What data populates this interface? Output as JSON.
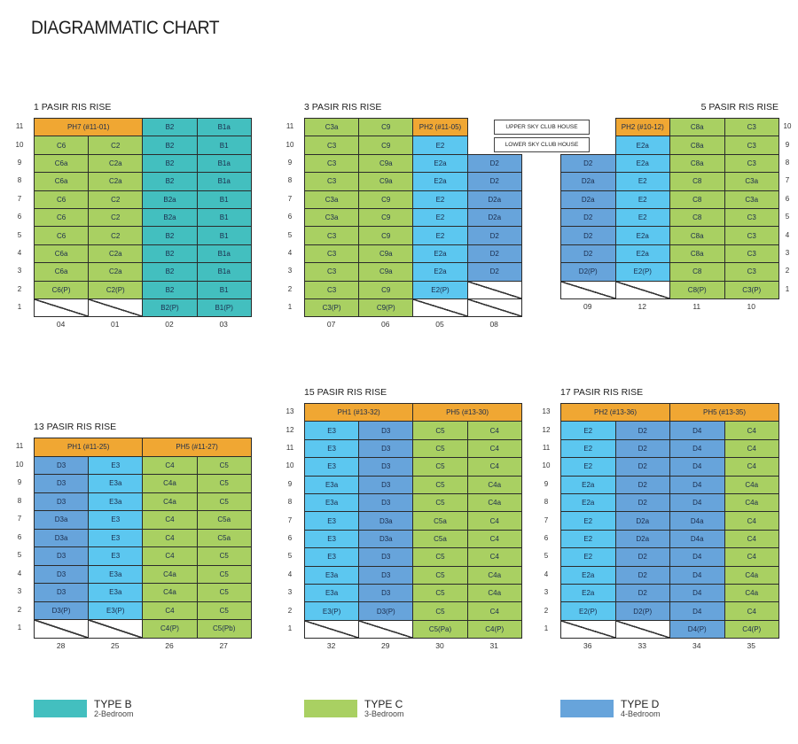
{
  "title": "DIAGRAMMATIC CHART",
  "colors": {
    "type_b": "#43bfbf",
    "type_c": "#a9d062",
    "type_d": "#67a4db",
    "type_e": "#5cc7f0",
    "penthouse": "#f0a733"
  },
  "sky_club": {
    "upper": "UPPER SKY CLUB HOUSE",
    "lower": "LOWER SKY CLUB HOUSE"
  },
  "blocks": [
    {
      "name": "1 PASIR RIS RISE",
      "stacks": [
        "04",
        "01",
        "02",
        "03"
      ],
      "rows": [
        {
          "floor": "11",
          "cells": [
            {
              "label": "PH7 (#11-01)",
              "span": 2
            },
            "B2",
            "B1a"
          ]
        },
        {
          "floor": "10",
          "cells": [
            "C6",
            "C2",
            "B2",
            "B1"
          ]
        },
        {
          "floor": "9",
          "cells": [
            "C6a",
            "C2a",
            "B2",
            "B1a"
          ]
        },
        {
          "floor": "8",
          "cells": [
            "C6a",
            "C2a",
            "B2",
            "B1a"
          ]
        },
        {
          "floor": "7",
          "cells": [
            "C6",
            "C2",
            "B2a",
            "B1"
          ]
        },
        {
          "floor": "6",
          "cells": [
            "C6",
            "C2",
            "B2a",
            "B1"
          ]
        },
        {
          "floor": "5",
          "cells": [
            "C6",
            "C2",
            "B2",
            "B1"
          ]
        },
        {
          "floor": "4",
          "cells": [
            "C6a",
            "C2a",
            "B2",
            "B1a"
          ]
        },
        {
          "floor": "3",
          "cells": [
            "C6a",
            "C2a",
            "B2",
            "B1a"
          ]
        },
        {
          "floor": "2",
          "cells": [
            "C6(P)",
            "C2(P)",
            "B2",
            "B1"
          ]
        },
        {
          "floor": "1",
          "cells": [
            "",
            "",
            "B2(P)",
            "B1(P)"
          ]
        }
      ]
    },
    {
      "name": "3 PASIR RIS RISE",
      "stacks": [
        "07",
        "06",
        "05",
        "08"
      ],
      "rows": [
        {
          "floor": "11",
          "cells": [
            "C3a",
            "C9",
            {
              "label": "PH2 (#11-05)",
              "span": 1
            },
            null
          ]
        },
        {
          "floor": "10",
          "cells": [
            "C3",
            "C9",
            "E2",
            null
          ]
        },
        {
          "floor": "9",
          "cells": [
            "C3",
            "C9a",
            "E2a",
            "D2"
          ]
        },
        {
          "floor": "8",
          "cells": [
            "C3",
            "C9a",
            "E2a",
            "D2"
          ]
        },
        {
          "floor": "7",
          "cells": [
            "C3a",
            "C9",
            "E2",
            "D2a"
          ]
        },
        {
          "floor": "6",
          "cells": [
            "C3a",
            "C9",
            "E2",
            "D2a"
          ]
        },
        {
          "floor": "5",
          "cells": [
            "C3",
            "C9",
            "E2",
            "D2"
          ]
        },
        {
          "floor": "4",
          "cells": [
            "C3",
            "C9a",
            "E2a",
            "D2"
          ]
        },
        {
          "floor": "3",
          "cells": [
            "C3",
            "C9a",
            "E2a",
            "D2"
          ]
        },
        {
          "floor": "2",
          "cells": [
            "C3",
            "C9",
            "E2(P)",
            ""
          ]
        },
        {
          "floor": "1",
          "cells": [
            "C3(P)",
            "C9(P)",
            "",
            ""
          ]
        }
      ]
    },
    {
      "name": "5 PASIR RIS RISE",
      "stacks": [
        "09",
        "12",
        "11",
        "10"
      ],
      "rows": [
        {
          "floor": "10",
          "cells": [
            null,
            {
              "label": "PH2 (#10-12)",
              "span": 1
            },
            "C8a",
            "C3"
          ]
        },
        {
          "floor": "9",
          "cells": [
            null,
            "E2a",
            "C8a",
            "C3"
          ]
        },
        {
          "floor": "8",
          "cells": [
            "D2",
            "E2a",
            "C8a",
            "C3"
          ]
        },
        {
          "floor": "7",
          "cells": [
            "D2a",
            "E2",
            "C8",
            "C3a"
          ]
        },
        {
          "floor": "6",
          "cells": [
            "D2a",
            "E2",
            "C8",
            "C3a"
          ]
        },
        {
          "floor": "5",
          "cells": [
            "D2",
            "E2",
            "C8",
            "C3"
          ]
        },
        {
          "floor": "4",
          "cells": [
            "D2",
            "E2a",
            "C8a",
            "C3"
          ]
        },
        {
          "floor": "3",
          "cells": [
            "D2",
            "E2a",
            "C8a",
            "C3"
          ]
        },
        {
          "floor": "2",
          "cells": [
            "D2(P)",
            "E2(P)",
            "C8",
            "C3"
          ]
        },
        {
          "floor": "1",
          "cells": [
            "",
            "",
            "C8(P)",
            "C3(P)"
          ]
        }
      ]
    },
    {
      "name": "13 PASIR RIS RISE",
      "stacks": [
        "28",
        "25",
        "26",
        "27"
      ],
      "rows": [
        {
          "floor": "11",
          "cells": [
            {
              "label": "PH1 (#11-25)",
              "span": 2
            },
            {
              "label": "PH5 (#11-27)",
              "span": 2
            }
          ]
        },
        {
          "floor": "10",
          "cells": [
            "D3",
            "E3",
            "C4",
            "C5"
          ]
        },
        {
          "floor": "9",
          "cells": [
            "D3",
            "E3a",
            "C4a",
            "C5"
          ]
        },
        {
          "floor": "8",
          "cells": [
            "D3",
            "E3a",
            "C4a",
            "C5"
          ]
        },
        {
          "floor": "7",
          "cells": [
            "D3a",
            "E3",
            "C4",
            "C5a"
          ]
        },
        {
          "floor": "6",
          "cells": [
            "D3a",
            "E3",
            "C4",
            "C5a"
          ]
        },
        {
          "floor": "5",
          "cells": [
            "D3",
            "E3",
            "C4",
            "C5"
          ]
        },
        {
          "floor": "4",
          "cells": [
            "D3",
            "E3a",
            "C4a",
            "C5"
          ]
        },
        {
          "floor": "3",
          "cells": [
            "D3",
            "E3a",
            "C4a",
            "C5"
          ]
        },
        {
          "floor": "2",
          "cells": [
            "D3(P)",
            "E3(P)",
            "C4",
            "C5"
          ]
        },
        {
          "floor": "1",
          "cells": [
            "",
            "",
            "C4(P)",
            "C5(Pb)"
          ]
        }
      ]
    },
    {
      "name": "15 PASIR RIS RISE",
      "stacks": [
        "32",
        "29",
        "30",
        "31"
      ],
      "rows": [
        {
          "floor": "13",
          "cells": [
            {
              "label": "PH1 (#13-32)",
              "span": 2
            },
            {
              "label": "PH5 (#13-30)",
              "span": 2
            }
          ]
        },
        {
          "floor": "12",
          "cells": [
            "E3",
            "D3",
            "C5",
            "C4"
          ]
        },
        {
          "floor": "11",
          "cells": [
            "E3",
            "D3",
            "C5",
            "C4"
          ]
        },
        {
          "floor": "10",
          "cells": [
            "E3",
            "D3",
            "C5",
            "C4"
          ]
        },
        {
          "floor": "9",
          "cells": [
            "E3a",
            "D3",
            "C5",
            "C4a"
          ]
        },
        {
          "floor": "8",
          "cells": [
            "E3a",
            "D3",
            "C5",
            "C4a"
          ]
        },
        {
          "floor": "7",
          "cells": [
            "E3",
            "D3a",
            "C5a",
            "C4"
          ]
        },
        {
          "floor": "6",
          "cells": [
            "E3",
            "D3a",
            "C5a",
            "C4"
          ]
        },
        {
          "floor": "5",
          "cells": [
            "E3",
            "D3",
            "C5",
            "C4"
          ]
        },
        {
          "floor": "4",
          "cells": [
            "E3a",
            "D3",
            "C5",
            "C4a"
          ]
        },
        {
          "floor": "3",
          "cells": [
            "E3a",
            "D3",
            "C5",
            "C4a"
          ]
        },
        {
          "floor": "2",
          "cells": [
            "E3(P)",
            "D3(P)",
            "C5",
            "C4"
          ]
        },
        {
          "floor": "1",
          "cells": [
            "",
            "",
            "C5(Pa)",
            "C4(P)"
          ]
        }
      ]
    },
    {
      "name": "17 PASIR RIS RISE",
      "stacks": [
        "36",
        "33",
        "34",
        "35"
      ],
      "rows": [
        {
          "floor": "13",
          "cells": [
            {
              "label": "PH2 (#13-36)",
              "span": 2
            },
            {
              "label": "PH5 (#13-35)",
              "span": 2
            }
          ]
        },
        {
          "floor": "12",
          "cells": [
            "E2",
            "D2",
            "D4",
            "C4"
          ]
        },
        {
          "floor": "11",
          "cells": [
            "E2",
            "D2",
            "D4",
            "C4"
          ]
        },
        {
          "floor": "10",
          "cells": [
            "E2",
            "D2",
            "D4",
            "C4"
          ]
        },
        {
          "floor": "9",
          "cells": [
            "E2a",
            "D2",
            "D4",
            "C4a"
          ]
        },
        {
          "floor": "8",
          "cells": [
            "E2a",
            "D2",
            "D4",
            "C4a"
          ]
        },
        {
          "floor": "7",
          "cells": [
            "E2",
            "D2a",
            "D4a",
            "C4"
          ]
        },
        {
          "floor": "6",
          "cells": [
            "E2",
            "D2a",
            "D4a",
            "C4"
          ]
        },
        {
          "floor": "5",
          "cells": [
            "E2",
            "D2",
            "D4",
            "C4"
          ]
        },
        {
          "floor": "4",
          "cells": [
            "E2a",
            "D2",
            "D4",
            "C4a"
          ]
        },
        {
          "floor": "3",
          "cells": [
            "E2a",
            "D2",
            "D4",
            "C4a"
          ]
        },
        {
          "floor": "2",
          "cells": [
            "E2(P)",
            "D2(P)",
            "D4",
            "C4"
          ]
        },
        {
          "floor": "1",
          "cells": [
            "",
            "",
            "D4(P)",
            "C4(P)"
          ]
        }
      ]
    }
  ],
  "legend": [
    {
      "type": "TYPE B",
      "sub": "2-Bedroom",
      "key": "B"
    },
    {
      "type": "TYPE C",
      "sub": "3-Bedroom",
      "key": "C"
    },
    {
      "type": "TYPE D",
      "sub": "4-Bedroom",
      "key": "D"
    }
  ]
}
